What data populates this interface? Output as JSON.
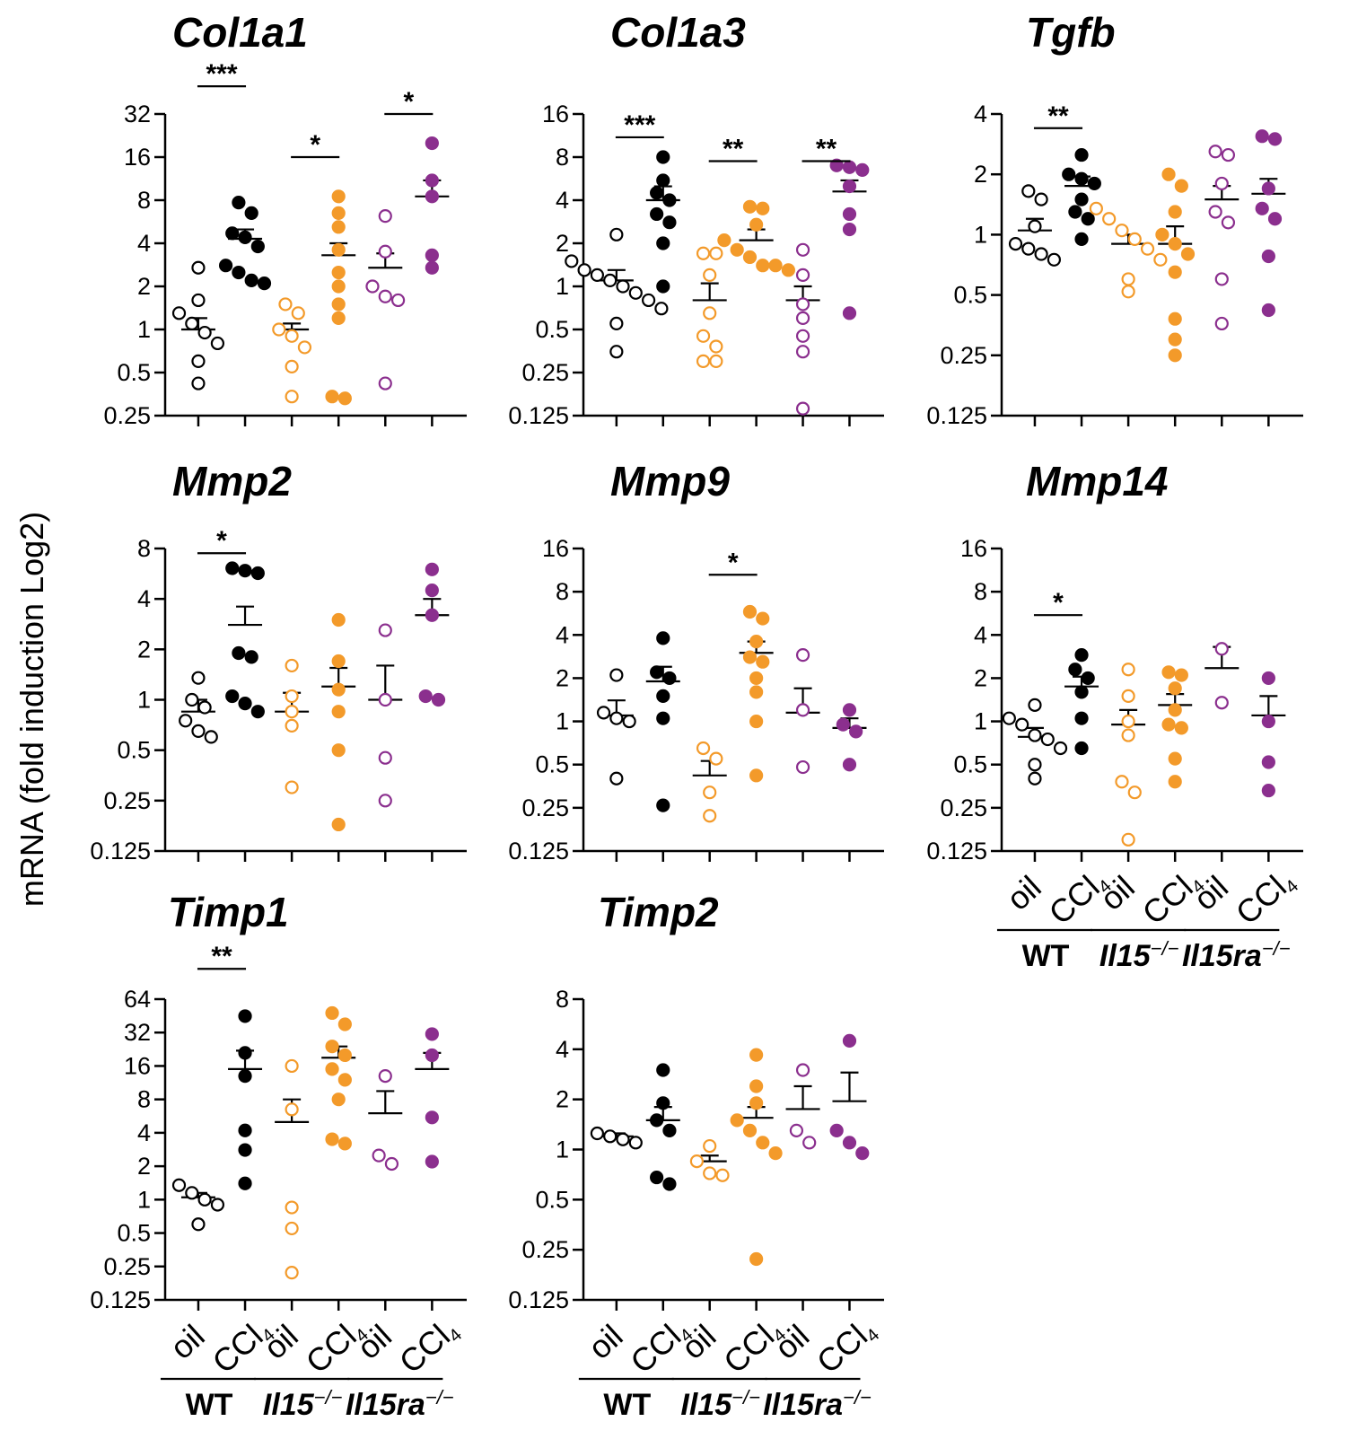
{
  "y_axis_label": "mRNA (fold induction Log2)",
  "colors": {
    "WT": "#000000",
    "Il15_ko": "#F39A2A",
    "Il15ra_ko": "#8B2F8E"
  },
  "conditions": [
    "oil",
    "CCl",
    "4"
  ],
  "genotypes": {
    "wt": "WT",
    "il15": "Il15",
    "il15ra": "Il15ra",
    "ko_sup": "−/−"
  },
  "chart_data": [
    {
      "type": "scatter",
      "title": "Col1a1",
      "ylim": [
        0.25,
        32
      ],
      "yticks": [
        "0.25",
        "0.5",
        "1",
        "2",
        "4",
        "8",
        "16",
        "32"
      ],
      "significance": [
        {
          "groups": [
            0,
            1
          ],
          "label": "***",
          "y": 50
        },
        {
          "groups": [
            2,
            3
          ],
          "label": "*",
          "y": 16
        },
        {
          "groups": [
            4,
            5
          ],
          "label": "*",
          "y": 32
        }
      ],
      "groups": [
        {
          "name": "WT oil",
          "mean": 1.0,
          "sem_top": 1.2,
          "values": [
            2.7,
            1.6,
            1.3,
            1.1,
            0.95,
            0.8,
            0.6,
            0.42
          ]
        },
        {
          "name": "WT CCl4",
          "mean": 4.3,
          "sem_top": 5.0,
          "values": [
            7.7,
            6.5,
            4.7,
            4.4,
            3.8,
            2.8,
            2.5,
            2.2,
            2.1
          ]
        },
        {
          "name": "Il15-/- oil",
          "mean": 1.0,
          "sem_top": 1.1,
          "values": [
            1.5,
            1.3,
            1.0,
            0.9,
            0.75,
            0.55,
            0.34
          ]
        },
        {
          "name": "Il15-/- CCl4",
          "mean": 3.3,
          "sem_top": 4.0,
          "values": [
            8.5,
            6.5,
            5.2,
            3.6,
            2.5,
            2.0,
            1.5,
            1.2,
            0.33,
            0.34
          ]
        },
        {
          "name": "Il15ra-/- oil",
          "mean": 2.7,
          "sem_top": 3.4,
          "values": [
            6.2,
            3.5,
            2.0,
            1.7,
            1.6,
            0.42
          ]
        },
        {
          "name": "Il15ra-/- CCl4",
          "mean": 8.5,
          "sem_top": 11,
          "values": [
            20,
            11,
            8.5,
            3.3,
            2.7
          ]
        }
      ]
    },
    {
      "type": "scatter",
      "title": "Col1a3",
      "ylim": [
        0.125,
        16
      ],
      "yticks": [
        "0.125",
        "0.25",
        "0.5",
        "1",
        "2",
        "4",
        "8",
        "16"
      ],
      "significance": [
        {
          "groups": [
            0,
            1
          ],
          "label": "***",
          "y": 11
        },
        {
          "groups": [
            2,
            3
          ],
          "label": "**",
          "y": 7.5
        },
        {
          "groups": [
            4,
            5
          ],
          "label": "**",
          "y": 7.5
        }
      ],
      "groups": [
        {
          "name": "WT oil",
          "mean": 1.1,
          "sem_top": 1.3,
          "values": [
            2.3,
            1.5,
            1.3,
            1.2,
            1.1,
            1.0,
            0.9,
            0.8,
            0.7,
            0.55,
            0.35
          ]
        },
        {
          "name": "WT CCl4",
          "mean": 4.0,
          "sem_top": 5.0,
          "values": [
            8.0,
            5.5,
            4.5,
            4.0,
            3.2,
            2.8,
            2.0,
            1.0
          ]
        },
        {
          "name": "Il15-/- oil",
          "mean": 0.8,
          "sem_top": 1.05,
          "values": [
            1.7,
            1.7,
            1.2,
            0.65,
            0.45,
            0.38,
            0.3,
            0.3
          ]
        },
        {
          "name": "Il15-/- CCl4",
          "mean": 2.1,
          "sem_top": 2.5,
          "values": [
            3.6,
            3.5,
            2.7,
            2.1,
            1.8,
            1.6,
            1.4,
            1.4,
            1.3
          ]
        },
        {
          "name": "Il15ra-/- oil",
          "mean": 0.8,
          "sem_top": 1.0,
          "values": [
            1.8,
            1.2,
            0.75,
            0.6,
            0.45,
            0.35,
            0.14
          ]
        },
        {
          "name": "Il15ra-/- CCl4",
          "mean": 4.6,
          "sem_top": 5.5,
          "values": [
            7.0,
            6.8,
            6.5,
            5.0,
            3.2,
            2.5,
            0.65
          ]
        }
      ]
    },
    {
      "type": "scatter",
      "title": "Tgfb",
      "ylim": [
        0.125,
        4
      ],
      "yticks": [
        "0.125",
        "0.25",
        "0.5",
        "1",
        "2",
        "4"
      ],
      "significance": [
        {
          "groups": [
            0,
            1
          ],
          "label": "**",
          "y": 3.4
        }
      ],
      "groups": [
        {
          "name": "WT oil",
          "mean": 1.05,
          "sem_top": 1.2,
          "values": [
            1.65,
            1.5,
            1.1,
            0.9,
            0.85,
            0.8,
            0.75
          ]
        },
        {
          "name": "WT CCl4",
          "mean": 1.75,
          "sem_top": 1.95,
          "values": [
            2.5,
            2.0,
            1.9,
            1.8,
            1.5,
            1.3,
            1.2,
            0.95
          ]
        },
        {
          "name": "Il15-/- oil",
          "mean": 0.9,
          "sem_top": 1.0,
          "values": [
            1.35,
            1.2,
            1.05,
            0.95,
            0.85,
            0.75,
            0.6,
            0.52
          ]
        },
        {
          "name": "Il15-/- CCl4",
          "mean": 0.9,
          "sem_top": 1.1,
          "values": [
            2.0,
            1.75,
            1.3,
            1.0,
            0.9,
            0.8,
            0.65,
            0.38,
            0.3,
            0.25
          ]
        },
        {
          "name": "Il15ra-/- oil",
          "mean": 1.5,
          "sem_top": 1.75,
          "values": [
            2.6,
            2.5,
            1.8,
            1.3,
            1.15,
            0.6,
            0.36
          ]
        },
        {
          "name": "Il15ra-/- CCl4",
          "mean": 1.6,
          "sem_top": 1.9,
          "values": [
            3.1,
            3.0,
            1.7,
            1.35,
            1.2,
            0.78,
            0.42
          ]
        }
      ]
    },
    {
      "type": "scatter",
      "title": "Mmp2",
      "ylim": [
        0.125,
        8
      ],
      "yticks": [
        "0.125",
        "0.25",
        "0.5",
        "1",
        "2",
        "4",
        "8"
      ],
      "significance": [
        {
          "groups": [
            0,
            1
          ],
          "label": "*",
          "y": 7.5
        }
      ],
      "groups": [
        {
          "name": "WT oil",
          "mean": 0.85,
          "sem_top": 1.0,
          "values": [
            1.35,
            1.0,
            0.9,
            0.75,
            0.65,
            0.6
          ]
        },
        {
          "name": "WT CCl4",
          "mean": 2.8,
          "sem_top": 3.6,
          "values": [
            6.1,
            5.9,
            5.7,
            1.9,
            1.8,
            1.05,
            0.95,
            0.85
          ]
        },
        {
          "name": "Il15-/- oil",
          "mean": 0.85,
          "sem_top": 1.1,
          "values": [
            1.6,
            1.05,
            0.85,
            0.7,
            0.3
          ]
        },
        {
          "name": "Il15-/- CCl4",
          "mean": 1.2,
          "sem_top": 1.55,
          "values": [
            3.0,
            1.7,
            1.15,
            0.85,
            0.5,
            0.18
          ]
        },
        {
          "name": "Il15ra-/- oil",
          "mean": 1.0,
          "sem_top": 1.6,
          "values": [
            2.6,
            1.0,
            0.45,
            0.25
          ]
        },
        {
          "name": "Il15ra-/- CCl4",
          "mean": 3.2,
          "sem_top": 4.0,
          "values": [
            6.0,
            4.5,
            3.2,
            1.05,
            1.0
          ]
        }
      ]
    },
    {
      "type": "scatter",
      "title": "Mmp9",
      "ylim": [
        0.125,
        16
      ],
      "yticks": [
        "0.125",
        "0.25",
        "0.5",
        "1",
        "2",
        "4",
        "8",
        "16"
      ],
      "significance": [
        {
          "groups": [
            2,
            3
          ],
          "label": "*",
          "y": 10.5
        }
      ],
      "groups": [
        {
          "name": "WT oil",
          "mean": 1.1,
          "sem_top": 1.4,
          "values": [
            2.1,
            1.15,
            1.05,
            1.0,
            0.4
          ]
        },
        {
          "name": "WT CCl4",
          "mean": 1.9,
          "sem_top": 2.4,
          "values": [
            3.8,
            2.2,
            2.0,
            1.5,
            1.05,
            0.26
          ]
        },
        {
          "name": "Il15-/- oil",
          "mean": 0.42,
          "sem_top": 0.53,
          "values": [
            0.65,
            0.55,
            0.32,
            0.22
          ]
        },
        {
          "name": "Il15-/- CCl4",
          "mean": 3.0,
          "sem_top": 3.6,
          "values": [
            5.8,
            5.2,
            3.6,
            2.8,
            2.6,
            2.0,
            1.6,
            1.0,
            0.42
          ]
        },
        {
          "name": "Il15ra-/- oil",
          "mean": 1.15,
          "sem_top": 1.7,
          "values": [
            2.9,
            1.2,
            0.48
          ]
        },
        {
          "name": "Il15ra-/- CCl4",
          "mean": 0.9,
          "sem_top": 1.05,
          "values": [
            1.2,
            0.95,
            0.85,
            0.5
          ]
        }
      ]
    },
    {
      "type": "scatter",
      "title": "Mmp14",
      "ylim": [
        0.125,
        16
      ],
      "yticks": [
        "0.125",
        "0.25",
        "0.5",
        "1",
        "2",
        "4",
        "8",
        "16"
      ],
      "significance": [
        {
          "groups": [
            0,
            1
          ],
          "label": "*",
          "y": 5.5
        }
      ],
      "groups": [
        {
          "name": "WT oil",
          "mean": 0.78,
          "sem_top": 0.9,
          "values": [
            1.3,
            1.05,
            0.95,
            0.8,
            0.75,
            0.65,
            0.5,
            0.4
          ]
        },
        {
          "name": "WT CCl4",
          "mean": 1.75,
          "sem_top": 2.05,
          "values": [
            2.9,
            2.3,
            2.0,
            1.6,
            1.05,
            0.65
          ]
        },
        {
          "name": "Il15-/- oil",
          "mean": 0.95,
          "sem_top": 1.2,
          "values": [
            2.3,
            1.5,
            1.0,
            0.8,
            0.38,
            0.32,
            0.15
          ]
        },
        {
          "name": "Il15-/- CCl4",
          "mean": 1.3,
          "sem_top": 1.55,
          "values": [
            2.2,
            2.1,
            1.7,
            1.2,
            0.95,
            0.9,
            0.55,
            0.38
          ]
        },
        {
          "name": "Il15ra-/- oil",
          "mean": 2.35,
          "sem_top": 3.3,
          "values": [
            3.2,
            1.35
          ]
        },
        {
          "name": "Il15ra-/- CCl4",
          "mean": 1.1,
          "sem_top": 1.5,
          "values": [
            2.0,
            1.0,
            0.52,
            0.33
          ]
        }
      ]
    },
    {
      "type": "scatter",
      "title": "Timp1",
      "ylim": [
        0.125,
        64
      ],
      "yticks": [
        "0.125",
        "0.25",
        "0.5",
        "1",
        "2",
        "4",
        "8",
        "16",
        "32",
        "64"
      ],
      "significance": [
        {
          "groups": [
            0,
            1
          ],
          "label": "**",
          "y": 120
        }
      ],
      "groups": [
        {
          "name": "WT oil",
          "mean": 1.05,
          "sem_top": 1.15,
          "values": [
            1.35,
            1.15,
            1.0,
            0.9,
            0.6
          ]
        },
        {
          "name": "WT CCl4",
          "mean": 15,
          "sem_top": 22,
          "values": [
            45,
            21,
            13,
            4.2,
            2.8,
            1.4
          ]
        },
        {
          "name": "Il15-/- oil",
          "mean": 5.0,
          "sem_top": 8.0,
          "values": [
            16,
            6.5,
            0.85,
            0.55,
            0.22
          ]
        },
        {
          "name": "Il15-/- CCl4",
          "mean": 19,
          "sem_top": 24,
          "values": [
            48,
            38,
            24,
            20,
            15,
            12,
            8.0,
            3.5,
            3.2
          ]
        },
        {
          "name": "Il15ra-/- oil",
          "mean": 6.0,
          "sem_top": 9.5,
          "values": [
            13,
            2.5,
            2.1
          ]
        },
        {
          "name": "Il15ra-/- CCl4",
          "mean": 15,
          "sem_top": 21,
          "values": [
            31,
            20,
            5.5,
            2.2
          ]
        }
      ]
    },
    {
      "type": "scatter",
      "title": "Timp2",
      "ylim": [
        0.125,
        8
      ],
      "yticks": [
        "0.125",
        "0.25",
        "0.5",
        "1",
        "2",
        "4",
        "8"
      ],
      "significance": [],
      "groups": [
        {
          "name": "WT oil",
          "mean": 1.2,
          "sem_top": 1.25,
          "values": [
            1.25,
            1.2,
            1.15,
            1.1
          ]
        },
        {
          "name": "WT CCl4",
          "mean": 1.5,
          "sem_top": 1.8,
          "values": [
            3.0,
            1.9,
            1.5,
            1.3,
            0.68,
            0.62
          ]
        },
        {
          "name": "Il15-/- oil",
          "mean": 0.85,
          "sem_top": 0.92,
          "values": [
            1.05,
            0.85,
            0.72,
            0.7
          ]
        },
        {
          "name": "Il15-/- CCl4",
          "mean": 1.55,
          "sem_top": 1.8,
          "values": [
            3.7,
            2.4,
            1.9,
            1.5,
            1.3,
            1.1,
            0.95,
            0.22
          ]
        },
        {
          "name": "Il15ra-/- oil",
          "mean": 1.75,
          "sem_top": 2.4,
          "values": [
            3.0,
            1.3,
            1.1
          ]
        },
        {
          "name": "Il15ra-/- CCl4",
          "mean": 1.95,
          "sem_top": 2.9,
          "values": [
            4.5,
            1.3,
            1.1,
            0.95
          ]
        }
      ]
    }
  ]
}
